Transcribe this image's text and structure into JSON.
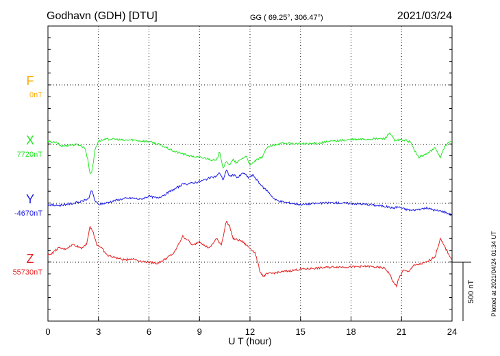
{
  "header": {
    "title": "Godhavn (GDH)  [DTU]",
    "coords": "GG ( 69.25°, 306.47°)",
    "date": "2021/03/24"
  },
  "footer": {
    "plotted_note": "Plotted at 2021/04/24 01:34 UT"
  },
  "chart_data": {
    "type": "line",
    "xlabel": "U T (hour)",
    "xlim": [
      0,
      24
    ],
    "x_ticks": [
      "0",
      "3",
      "6",
      "9",
      "12",
      "15",
      "18",
      "21",
      "24"
    ],
    "scale_bar_label": "500 nT",
    "scale_bar_nT": 500,
    "series": [
      {
        "name": "F",
        "baseline_label": "0nT",
        "color": "#FFAA00",
        "x": [],
        "y": []
      },
      {
        "name": "X",
        "baseline_label": "7720nT",
        "color": "#22E622",
        "x": [
          0,
          0.5,
          0.8,
          1.3,
          1.8,
          2.2,
          2.4,
          2.5,
          2.6,
          2.7,
          2.8,
          3.0,
          3.3,
          3.6,
          4.0,
          4.5,
          5.0,
          5.5,
          6.0,
          6.5,
          7.0,
          7.5,
          8.0,
          8.5,
          9.0,
          9.5,
          10.0,
          10.2,
          10.4,
          10.6,
          10.8,
          11.0,
          11.2,
          11.5,
          11.8,
          12.0,
          12.3,
          12.7,
          13.0,
          13.5,
          14.0,
          15.0,
          16.0,
          17.0,
          18.0,
          19.0,
          20.0,
          20.3,
          20.6,
          21.0,
          21.5,
          22.0,
          22.5,
          23.0,
          23.3,
          23.6,
          24.0
        ],
        "y": [
          25,
          15,
          -15,
          -5,
          0,
          -30,
          -150,
          -250,
          -230,
          -150,
          -40,
          30,
          40,
          45,
          45,
          35,
          40,
          30,
          25,
          5,
          -25,
          -60,
          -80,
          -100,
          -110,
          -120,
          -140,
          -60,
          -200,
          -150,
          -170,
          -130,
          -160,
          -120,
          -100,
          -180,
          -140,
          -110,
          -30,
          0,
          10,
          5,
          10,
          30,
          40,
          45,
          50,
          100,
          30,
          40,
          25,
          -110,
          -80,
          -30,
          -110,
          -10,
          30
        ]
      },
      {
        "name": "Y",
        "baseline_label": "-4670nT",
        "color": "#1A1AE6",
        "x": [
          0,
          0.5,
          1.0,
          1.5,
          2.0,
          2.4,
          2.6,
          2.8,
          3.0,
          3.5,
          4.0,
          4.5,
          5.0,
          5.5,
          6.0,
          6.5,
          7.0,
          7.5,
          8.0,
          8.5,
          9.0,
          9.5,
          10.0,
          10.2,
          10.4,
          10.6,
          10.8,
          11.0,
          11.3,
          11.6,
          11.9,
          12.2,
          12.5,
          12.8,
          13.0,
          13.5,
          14.0,
          15.0,
          16.0,
          17.0,
          18.0,
          19.0,
          20.0,
          20.5,
          20.8,
          21.2,
          21.6,
          22.0,
          22.5,
          23.0,
          23.5,
          24.0
        ],
        "y": [
          -10,
          -20,
          -10,
          0,
          15,
          40,
          110,
          20,
          -10,
          5,
          25,
          40,
          45,
          35,
          60,
          45,
          80,
          120,
          160,
          170,
          185,
          210,
          230,
          260,
          200,
          280,
          230,
          240,
          220,
          260,
          220,
          240,
          180,
          130,
          110,
          30,
          10,
          -10,
          0,
          5,
          0,
          -10,
          -25,
          -40,
          -30,
          -50,
          -60,
          -50,
          -40,
          -60,
          -70,
          -100
        ]
      },
      {
        "name": "Z",
        "baseline_label": "55730nT",
        "color": "#E62020",
        "x": [
          0,
          0.3,
          0.6,
          1.0,
          1.5,
          2.0,
          2.3,
          2.5,
          2.7,
          2.9,
          3.2,
          3.5,
          4.0,
          4.5,
          5.0,
          5.5,
          6.0,
          6.5,
          7.0,
          7.5,
          8.0,
          8.3,
          8.6,
          9.0,
          9.3,
          9.6,
          10.0,
          10.3,
          10.6,
          10.8,
          11.0,
          11.5,
          12.0,
          12.3,
          12.6,
          12.8,
          13.0,
          13.5,
          14.0,
          14.5,
          15.0,
          16.0,
          17.0,
          18.0,
          19.0,
          20.0,
          20.3,
          20.5,
          20.7,
          20.9,
          21.1,
          21.4,
          21.7,
          22.0,
          22.5,
          23.0,
          23.3,
          23.6,
          24.0
        ],
        "y": [
          60,
          80,
          120,
          110,
          150,
          120,
          160,
          300,
          250,
          150,
          120,
          60,
          40,
          20,
          30,
          10,
          0,
          -10,
          30,
          80,
          220,
          190,
          140,
          180,
          140,
          120,
          200,
          150,
          350,
          300,
          200,
          180,
          120,
          80,
          -80,
          -120,
          -100,
          -90,
          -80,
          -70,
          -60,
          -50,
          -40,
          -40,
          -35,
          -50,
          -100,
          -170,
          -200,
          -120,
          -70,
          -80,
          -30,
          -20,
          0,
          50,
          200,
          120,
          20
        ]
      }
    ]
  }
}
